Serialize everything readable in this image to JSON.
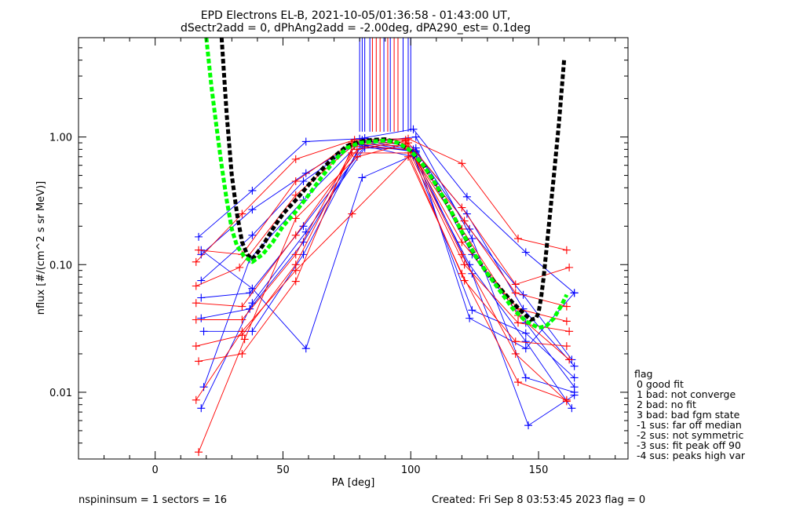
{
  "chart_data": {
    "type": "line",
    "title": "EPD Electrons EL-B, 2021-10-05/01:36:58 - 01:43:00 UT,",
    "subtitle": "dSectr2add = 0, dPhAng2add = -2.00deg, dPA290_est=   0.1deg",
    "xlabel": "PA [deg]",
    "ylabel": "nflux [#/(cm^2 s sr MeV)]",
    "xlim": [
      -30,
      185
    ],
    "ylim": [
      0.003,
      6.0
    ],
    "yscale": "log",
    "xticks": [
      "0",
      "50",
      "100",
      "150"
    ],
    "yticks": [
      "0.01",
      "0.10",
      "1.00"
    ],
    "xtick_values": [
      0,
      50,
      100,
      150
    ],
    "ytick_values": [
      0.01,
      0.1,
      1.0
    ],
    "grid": false,
    "series": [
      {
        "color": "#0000ff",
        "marker": "+",
        "x": [
          17,
          38,
          59,
          80,
          101,
          122,
          145,
          164
        ],
        "y": [
          0.165,
          0.38,
          0.92,
          0.97,
          1.15,
          0.34,
          0.125,
          0.06
        ]
      },
      {
        "color": "#0000ff",
        "marker": "+",
        "x": [
          18,
          38,
          59,
          81,
          102,
          123,
          144,
          163
        ],
        "y": [
          0.12,
          0.27,
          0.52,
          0.95,
          0.78,
          0.19,
          0.058,
          0.018
        ]
      },
      {
        "color": "#0000ff",
        "marker": "+",
        "x": [
          18,
          38,
          59,
          81,
          101,
          124,
          145,
          164
        ],
        "y": [
          0.13,
          0.065,
          0.022,
          0.48,
          0.72,
          0.044,
          0.029,
          0.013
        ]
      },
      {
        "color": "#0000ff",
        "marker": "+",
        "x": [
          18,
          38,
          58,
          82,
          102,
          124,
          145,
          164
        ],
        "y": [
          0.075,
          0.17,
          0.45,
          0.98,
          0.82,
          0.12,
          0.035,
          0.011
        ]
      },
      {
        "color": "#0000ff",
        "marker": "+",
        "x": [
          18,
          37,
          58,
          82,
          101,
          123,
          145,
          163
        ],
        "y": [
          0.055,
          0.06,
          0.2,
          0.85,
          0.7,
          0.1,
          0.025,
          0.0075
        ]
      },
      {
        "color": "#0000ff",
        "marker": "+",
        "x": [
          18,
          37,
          58,
          81,
          101,
          124,
          146,
          164
        ],
        "y": [
          0.038,
          0.045,
          0.15,
          0.87,
          0.77,
          0.085,
          0.0055,
          0.0095
        ]
      },
      {
        "color": "#0000ff",
        "marker": "+",
        "x": [
          19,
          38,
          58,
          81,
          102,
          123,
          145,
          164
        ],
        "y": [
          0.03,
          0.03,
          0.12,
          0.92,
          0.76,
          0.038,
          0.022,
          0.06
        ]
      },
      {
        "color": "#0000ff",
        "marker": "+",
        "x": [
          19,
          37,
          58,
          80,
          102,
          124,
          145,
          164
        ],
        "y": [
          0.011,
          0.11,
          0.32,
          0.9,
          1.0,
          0.16,
          0.013,
          0.01
        ]
      },
      {
        "color": "#0000ff",
        "marker": "+",
        "x": [
          18,
          38,
          59,
          82,
          101,
          122,
          144,
          164
        ],
        "y": [
          0.0075,
          0.05,
          0.18,
          0.82,
          0.8,
          0.25,
          0.045,
          0.016
        ]
      },
      {
        "color": "#ff0000",
        "marker": "+",
        "x": [
          16,
          34,
          55,
          78,
          99,
          120,
          142,
          161
        ],
        "y": [
          0.105,
          0.25,
          0.67,
          0.95,
          0.97,
          0.62,
          0.16,
          0.13
        ]
      },
      {
        "color": "#ff0000",
        "marker": "+",
        "x": [
          17,
          34,
          55,
          77,
          99,
          120,
          141,
          162
        ],
        "y": [
          0.13,
          0.12,
          0.45,
          0.9,
          0.9,
          0.28,
          0.07,
          0.095
        ]
      },
      {
        "color": "#ff0000",
        "marker": "+",
        "x": [
          16,
          33,
          55,
          78,
          98,
          121,
          141,
          161
        ],
        "y": [
          0.068,
          0.095,
          0.35,
          0.88,
          0.85,
          0.22,
          0.06,
          0.047
        ]
      },
      {
        "color": "#ff0000",
        "marker": "+",
        "x": [
          16,
          34,
          55,
          79,
          98,
          120,
          142,
          161
        ],
        "y": [
          0.05,
          0.047,
          0.17,
          0.8,
          0.93,
          0.15,
          0.045,
          0.036
        ]
      },
      {
        "color": "#ff0000",
        "marker": "+",
        "x": [
          16,
          34,
          55,
          78,
          99,
          121,
          142,
          162
        ],
        "y": [
          0.037,
          0.037,
          0.12,
          0.85,
          0.8,
          0.1,
          0.035,
          0.03
        ]
      },
      {
        "color": "#ff0000",
        "marker": "+",
        "x": [
          16,
          34,
          55,
          77,
          99,
          121,
          141,
          161
        ],
        "y": [
          0.023,
          0.028,
          0.1,
          0.75,
          0.75,
          0.075,
          0.025,
          0.023
        ]
      },
      {
        "color": "#ff0000",
        "marker": "+",
        "x": [
          17,
          34,
          55,
          78,
          98,
          120,
          141,
          161
        ],
        "y": [
          0.0175,
          0.02,
          0.074,
          0.92,
          0.95,
          0.12,
          0.02,
          0.0085
        ]
      },
      {
        "color": "#ff0000",
        "marker": "+",
        "x": [
          16,
          34,
          55,
          77,
          99,
          120,
          142,
          161
        ],
        "y": [
          0.0087,
          0.03,
          0.09,
          0.25,
          0.7,
          0.085,
          0.012,
          0.0087
        ]
      },
      {
        "color": "#ff0000",
        "marker": "+",
        "x": [
          17,
          35,
          55,
          79,
          98,
          120,
          142,
          162
        ],
        "y": [
          0.0034,
          0.026,
          0.23,
          0.7,
          0.88,
          0.19,
          0.04,
          0.018
        ]
      },
      {
        "color": "#000000",
        "style": "dotted",
        "x": [
          26,
          28,
          30,
          32,
          34,
          36,
          38,
          42,
          46,
          50,
          55,
          60,
          65,
          70,
          75,
          80,
          85,
          90,
          95,
          100,
          105,
          110,
          115,
          120,
          125,
          130,
          135,
          140,
          145,
          147,
          149,
          150,
          151,
          152,
          154,
          156,
          158,
          160
        ],
        "y": [
          6.0,
          1.5,
          0.5,
          0.25,
          0.15,
          0.12,
          0.11,
          0.14,
          0.19,
          0.25,
          0.32,
          0.42,
          0.55,
          0.7,
          0.85,
          0.92,
          0.95,
          0.96,
          0.9,
          0.78,
          0.6,
          0.42,
          0.28,
          0.18,
          0.12,
          0.085,
          0.065,
          0.05,
          0.04,
          0.037,
          0.038,
          0.042,
          0.055,
          0.08,
          0.2,
          0.5,
          1.3,
          4.0
        ]
      },
      {
        "color": "#00ff00",
        "style": "dotted",
        "x": [
          20,
          22,
          24,
          26,
          28,
          30,
          32,
          35,
          38,
          42,
          46,
          50,
          55,
          60,
          65,
          70,
          75,
          80,
          85,
          90,
          95,
          100,
          105,
          110,
          115,
          120,
          125,
          130,
          135,
          140,
          145,
          150,
          153,
          156,
          159,
          161
        ],
        "y": [
          6.0,
          2.5,
          1.2,
          0.6,
          0.32,
          0.19,
          0.14,
          0.115,
          0.105,
          0.12,
          0.15,
          0.2,
          0.26,
          0.35,
          0.48,
          0.65,
          0.82,
          0.9,
          0.92,
          0.94,
          0.9,
          0.78,
          0.6,
          0.42,
          0.28,
          0.18,
          0.12,
          0.085,
          0.062,
          0.045,
          0.036,
          0.032,
          0.033,
          0.038,
          0.048,
          0.058
        ]
      }
    ],
    "vlines": [
      {
        "x": 80,
        "color": "#0000ff"
      },
      {
        "x": 81,
        "color": "#0000ff"
      },
      {
        "x": 82,
        "color": "#0000ff"
      },
      {
        "x": 84,
        "color": "#0000ff"
      },
      {
        "x": 85,
        "color": "#ff0000"
      },
      {
        "x": 86.5,
        "color": "#ff0000"
      },
      {
        "x": 88,
        "color": "#ff0000"
      },
      {
        "x": 89.5,
        "color": "#0000ff"
      },
      {
        "x": 91,
        "color": "#ff0000"
      },
      {
        "x": 92,
        "color": "#0000ff"
      },
      {
        "x": 93.5,
        "color": "#ff0000"
      },
      {
        "x": 95,
        "color": "#ff0000"
      },
      {
        "x": 97,
        "color": "#0000ff"
      },
      {
        "x": 99,
        "color": "#0000ff"
      },
      {
        "x": 100,
        "color": "#0000ff"
      }
    ],
    "vline_range": [
      1.1,
      6.0
    ],
    "legend": {
      "placement": "right",
      "title": "flag",
      "entries": [
        "0 good fit",
        "1 bad: not converge",
        "2 bad: no fit",
        "3 bad: bad fgm state",
        "-1 sus: far off median",
        "-2 sus: not symmetric",
        "-3 sus: fit peak off 90",
        "-4 sus: peaks high var"
      ]
    }
  },
  "footer": {
    "left": "nspininsum =  1  sectors = 16",
    "right": "Created: Fri Sep  8 03:53:45 2023   flag = 0"
  }
}
